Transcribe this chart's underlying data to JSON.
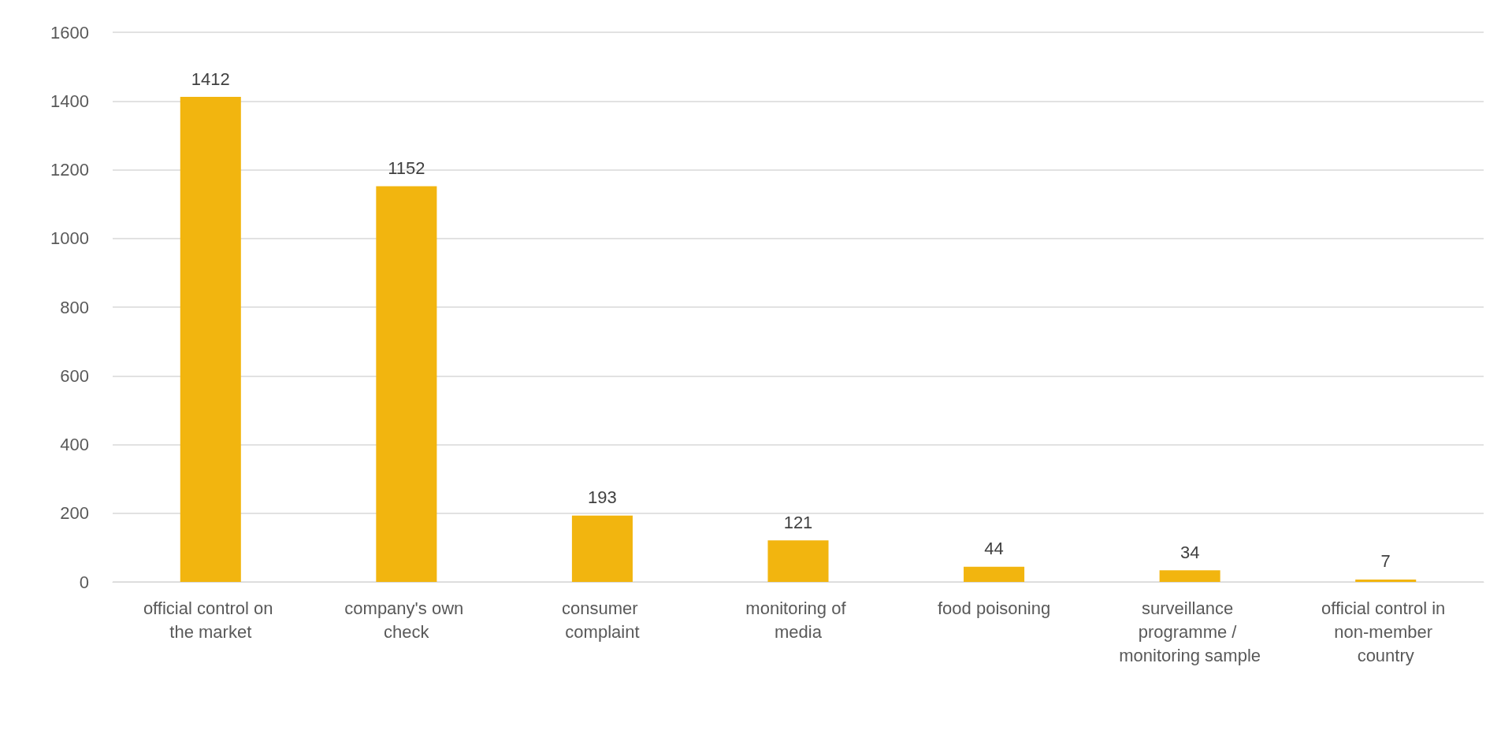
{
  "chart_data": {
    "type": "bar",
    "categories": [
      "official control on the market",
      "company's own check",
      "consumer complaint",
      "monitoring of media",
      "food poisoning",
      "surveillance programme / monitoring sample",
      "official control in non-member country"
    ],
    "values": [
      1412,
      1152,
      193,
      121,
      44,
      34,
      7
    ],
    "color": "#f2b50f",
    "ylim": [
      0,
      1600
    ],
    "yticks": [
      0,
      200,
      400,
      600,
      800,
      1000,
      1200,
      1400,
      1600
    ],
    "grid": "y",
    "data_labels": true
  }
}
